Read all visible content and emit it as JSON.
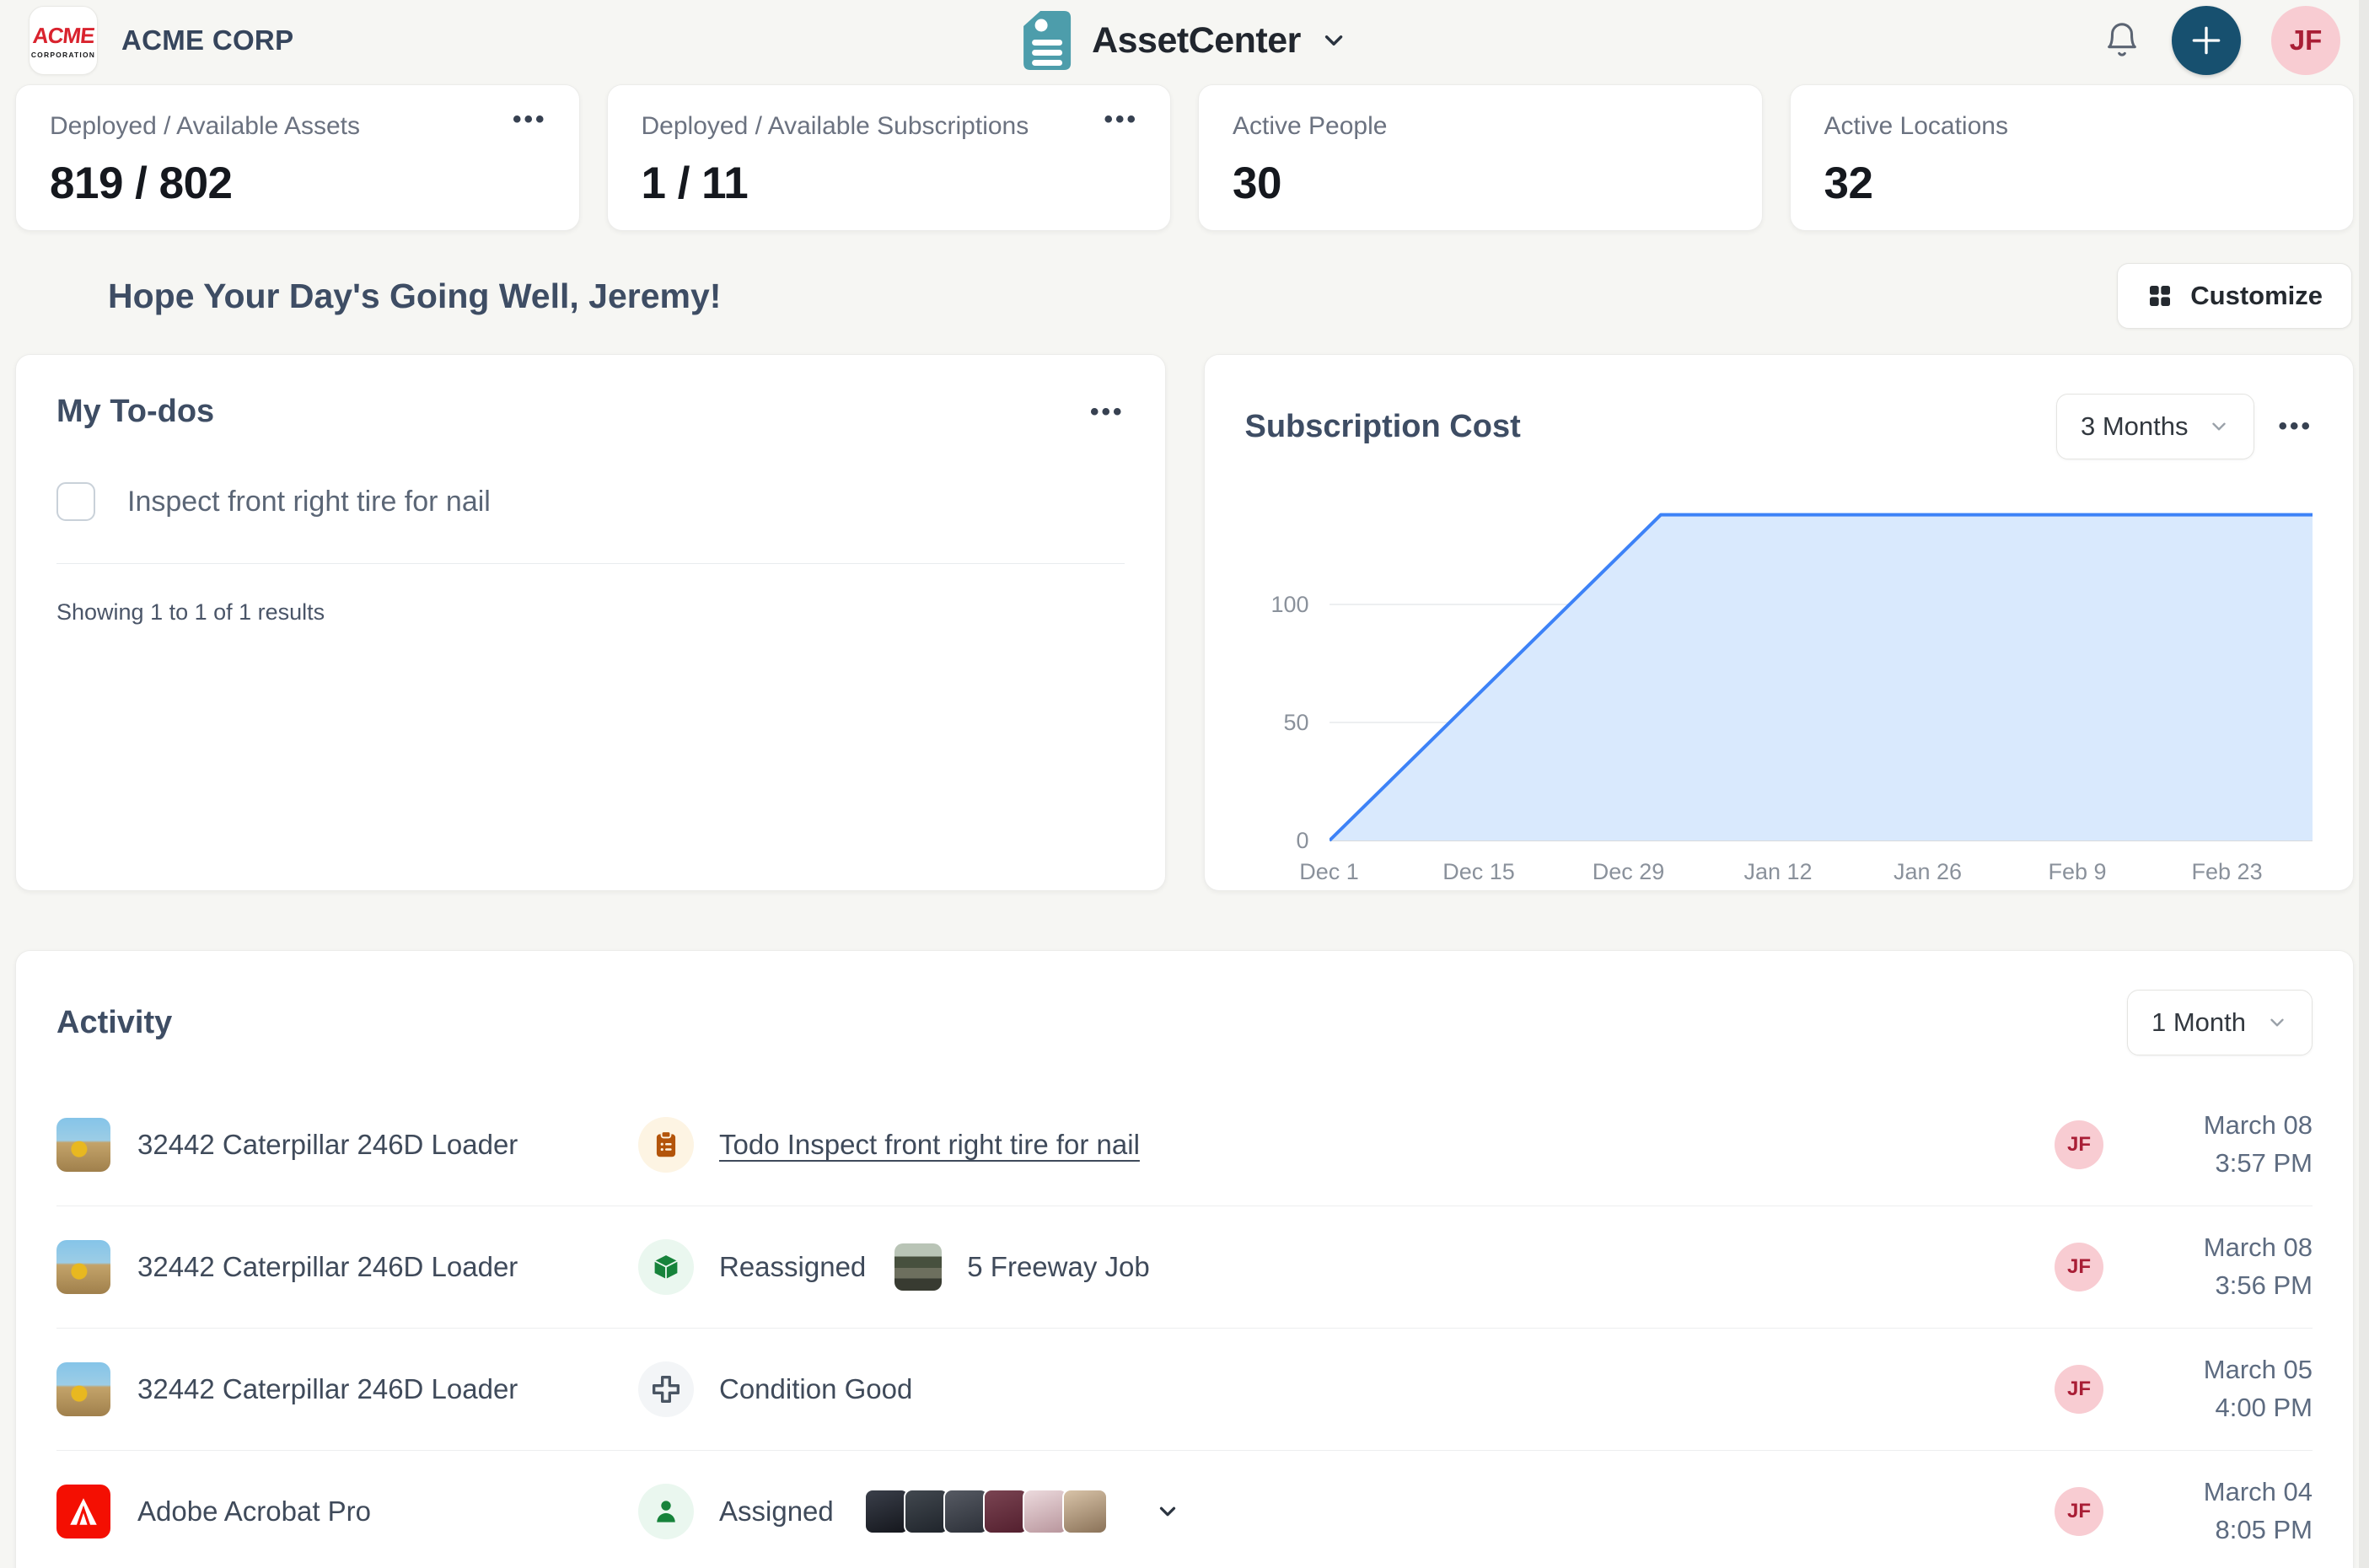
{
  "colors": {
    "brand_red": "#d9232e",
    "accent_teal": "#4d9dab",
    "add_button_bg": "#17506f",
    "user_avatar_bg": "#f8ccd2",
    "user_avatar_text": "#a91e36"
  },
  "header": {
    "company_name": "ACME CORP",
    "logo_line1": "ACME",
    "logo_line2": "CORPORATION",
    "app_name": "AssetCenter",
    "user_initials": "JF"
  },
  "stats": [
    {
      "label": "Deployed / Available Assets",
      "value": "819 / 802",
      "menu": true
    },
    {
      "label": "Deployed / Available Subscriptions",
      "value": "1 / 11",
      "menu": true
    },
    {
      "label": "Active People",
      "value": "30",
      "menu": false
    },
    {
      "label": "Active Locations",
      "value": "32",
      "menu": false
    }
  ],
  "greeting": {
    "text": "Hope Your Day's Going Well, Jeremy!",
    "customize_label": "Customize"
  },
  "todos": {
    "title": "My To-dos",
    "items": [
      {
        "label": "Inspect front right tire for nail",
        "checked": false
      }
    ],
    "footer": "Showing 1 to 1 of 1 results"
  },
  "subscription_cost": {
    "title": "Subscription Cost",
    "range_selector": "3 Months"
  },
  "chart_data": {
    "type": "area",
    "title": "Subscription Cost",
    "x_tick_labels": [
      "Dec 1",
      "Dec 15",
      "Dec 29",
      "Jan 12",
      "Jan 26",
      "Feb 9",
      "Feb 23"
    ],
    "x_tick_days": [
      0,
      14,
      28,
      42,
      56,
      70,
      84
    ],
    "x_domain_days": [
      0,
      92
    ],
    "y_ticks": [
      0,
      50,
      100
    ],
    "y_max": 140,
    "series": [
      {
        "name": "Subscription Cost",
        "points": [
          {
            "day": 0,
            "value": 0
          },
          {
            "day": 31,
            "value": 138
          },
          {
            "day": 92,
            "value": 138
          }
        ]
      }
    ],
    "line_color": "#3d82f7",
    "fill_color": "#d9e9fd",
    "grid": true,
    "legend_position": "none"
  },
  "activity": {
    "title": "Activity",
    "range_selector": "1 Month",
    "rows": [
      {
        "item_name": "32442 Caterpillar 246D Loader",
        "item_icon": "loader-photo",
        "action_icon": "clipboard-icon",
        "action_text": "Todo Inspect front right tire for nail",
        "action_is_link": true,
        "user_initials": "JF",
        "date": "March 08",
        "time": "3:57 PM"
      },
      {
        "item_name": "32442 Caterpillar 246D Loader",
        "item_icon": "loader-photo",
        "action_icon": "cube-icon",
        "action_text": "Reassigned",
        "target_name": "5 Freeway Job",
        "target_icon": "freeway-photo",
        "user_initials": "JF",
        "date": "March 08",
        "time": "3:56 PM"
      },
      {
        "item_name": "32442 Caterpillar 246D Loader",
        "item_icon": "loader-photo",
        "action_icon": "plus-icon",
        "action_text": "Condition Good",
        "user_initials": "JF",
        "date": "March 05",
        "time": "4:00 PM"
      },
      {
        "item_name": "Adobe Acrobat Pro",
        "item_icon": "adobe-icon",
        "action_icon": "person-icon",
        "action_text": "Assigned",
        "assignee_count": 6,
        "has_expander": true,
        "user_initials": "JF",
        "date": "March 04",
        "time": "8:05 PM"
      }
    ]
  }
}
